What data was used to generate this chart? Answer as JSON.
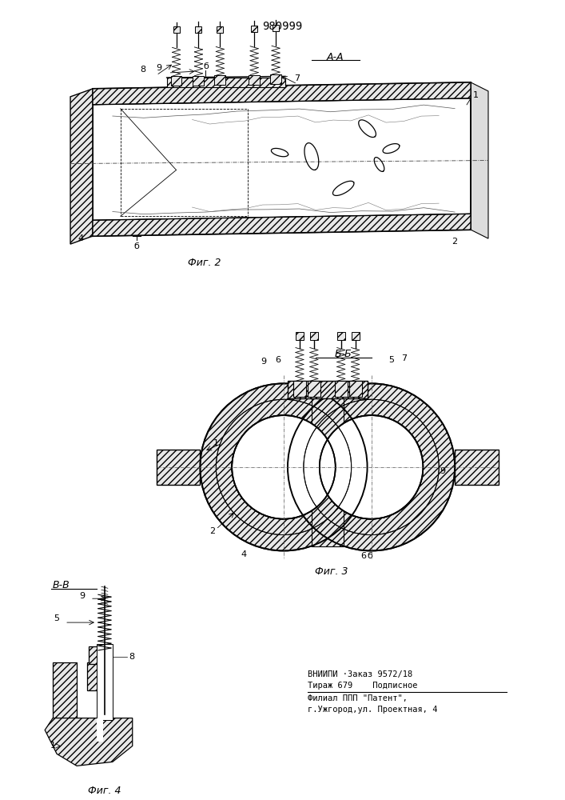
{
  "patent_number": "980999",
  "background_color": "#ffffff",
  "fig2_label": "Фиг. 2",
  "fig3_label": "Фиг. 3",
  "fig4_label": "Фиг. 4",
  "section_aa": "А-А",
  "section_bb": "Б-Б",
  "section_vv": "В-В",
  "footer_line1": "ВНИИПИ ·Заказ 9572/18",
  "footer_line2": "Тираж 679    Подписное",
  "footer_line3": "Филиал ППП \"Патент\",",
  "footer_line4": "г.Ужгород,ул. Проектная, 4"
}
